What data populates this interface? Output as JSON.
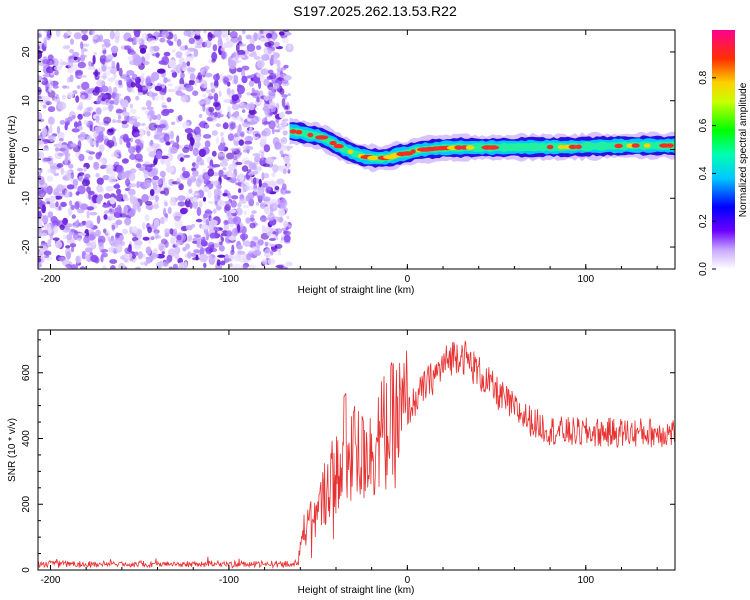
{
  "title": "S197.2025.262.13.53.R22",
  "chart_data": [
    {
      "type": "heatmap",
      "xlabel": "Height of straight line (km)",
      "ylabel": "Frequency (Hz)",
      "xlim": [
        -207,
        150
      ],
      "ylim": [
        -24.5,
        24.5
      ],
      "xticks": [
        -200,
        -100,
        0,
        100
      ],
      "yticks": [
        -20,
        -10,
        0,
        10,
        20
      ],
      "noise_region_x": [
        -207,
        -66
      ],
      "signal_ridge": {
        "x": [
          -66,
          -60,
          -55,
          -50,
          -45,
          -40,
          -35,
          -30,
          -25,
          -20,
          -15,
          -10,
          -5,
          0,
          5,
          10,
          20,
          30,
          50,
          70,
          90,
          110,
          130,
          150
        ],
        "freq_hz": [
          3.8,
          3.5,
          3.0,
          2.8,
          2.0,
          1.0,
          0.0,
          -0.8,
          -1.4,
          -1.7,
          -1.8,
          -1.6,
          -1.0,
          -0.8,
          -0.2,
          0.0,
          0.3,
          0.4,
          0.4,
          0.5,
          0.5,
          0.7,
          0.8,
          0.8
        ]
      },
      "colorbar": {
        "label": "Normalized spectral amplitude",
        "range": [
          0.0,
          1.0
        ],
        "ticks": [
          "0.0",
          "0.2",
          "0.4",
          "0.6",
          "0.8"
        ]
      }
    },
    {
      "type": "line",
      "xlabel": "Height of straight line (km)",
      "ylabel": "SNR (10 * v/v)",
      "xlim": [
        -207,
        150
      ],
      "ylim": [
        0,
        730
      ],
      "xticks": [
        -200,
        -100,
        0,
        100
      ],
      "yticks": [
        0,
        200,
        400,
        600
      ],
      "series": [
        {
          "name": "SNR",
          "color": "#e83030",
          "envelope_x": [
            -207,
            -100,
            -62,
            -58,
            -50,
            -45,
            -40,
            -35,
            -30,
            -20,
            -10,
            0,
            10,
            20,
            25,
            30,
            40,
            50,
            60,
            70,
            80,
            90,
            100,
            120,
            150
          ],
          "envelope_y": [
            18,
            18,
            18,
            120,
            170,
            260,
            300,
            300,
            330,
            380,
            430,
            480,
            560,
            620,
            650,
            660,
            600,
            540,
            490,
            450,
            425,
            420,
            418,
            418,
            418
          ],
          "spike_x": [
            -35,
            -30,
            -25
          ],
          "spike_y": [
            540,
            500,
            470
          ]
        }
      ]
    }
  ]
}
